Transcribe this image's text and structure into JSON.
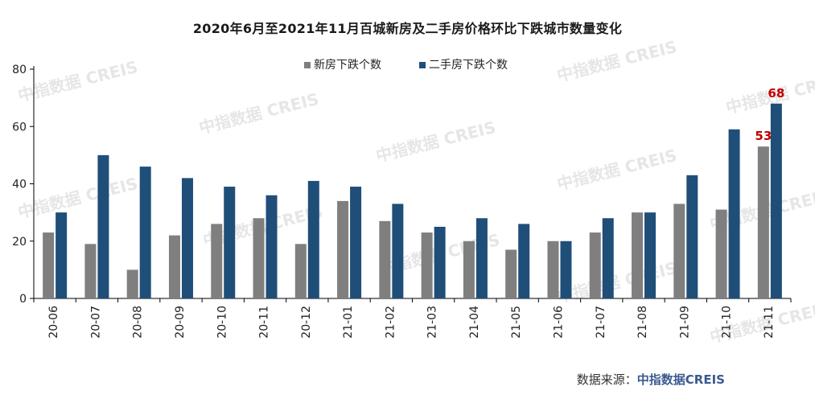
{
  "title": "2020年6月至2021年11月百城新房及二手房价格环比下跌城市数量变化",
  "source_label": "数据来源：",
  "source_brand": "中指数据CREIS",
  "watermark": "中指数据 CREIS",
  "chart_data": {
    "type": "bar",
    "categories": [
      "20-06",
      "20-07",
      "20-08",
      "20-09",
      "20-10",
      "20-11",
      "20-12",
      "21-01",
      "21-02",
      "21-03",
      "21-04",
      "21-05",
      "21-06",
      "21-07",
      "21-08",
      "21-09",
      "21-10",
      "21-11"
    ],
    "series": [
      {
        "name": "新房下跌个数",
        "color": "#7f7f7f",
        "values": [
          23,
          19,
          10,
          22,
          26,
          28,
          19,
          34,
          27,
          23,
          20,
          17,
          20,
          23,
          30,
          33,
          31,
          53
        ]
      },
      {
        "name": "二手房下跌个数",
        "color": "#1f4e79",
        "values": [
          30,
          50,
          46,
          42,
          39,
          36,
          41,
          39,
          33,
          25,
          28,
          26,
          20,
          28,
          30,
          43,
          59,
          68
        ]
      }
    ],
    "data_labels": [
      {
        "series": 0,
        "index": 17,
        "text": "53"
      },
      {
        "series": 1,
        "index": 17,
        "text": "68"
      }
    ],
    "label_color": "#c00000",
    "ylim": [
      0,
      80
    ],
    "yticks": [
      0,
      20,
      40,
      60,
      80
    ],
    "legend_position": "top-center",
    "grid": false
  }
}
